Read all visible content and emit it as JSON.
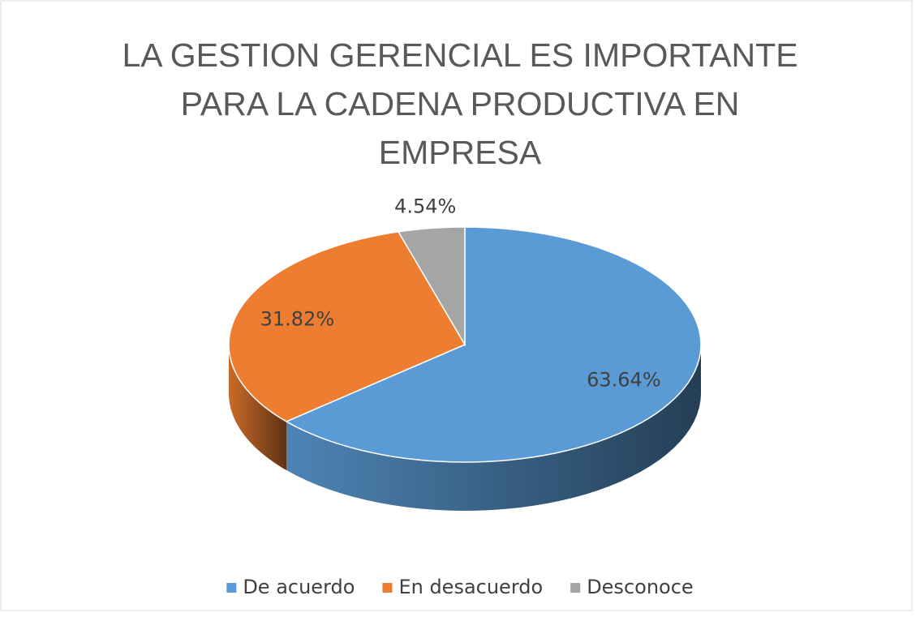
{
  "chart_data": {
    "type": "pie",
    "title": "LA GESTION GERENCIAL ES IMPORTANTE PARA LA CADENA PRODUCTIVA EN EMPRESA",
    "categories": [
      "De acuerdo",
      "En desacuerdo",
      "Desconoce"
    ],
    "values": [
      63.64,
      31.82,
      4.54
    ],
    "value_labels": [
      "63.64%",
      "31.82%",
      "4.54%"
    ],
    "colors": [
      "#5b9bd5",
      "#ed7d31",
      "#a5a5a5"
    ],
    "legend": "bottom"
  }
}
